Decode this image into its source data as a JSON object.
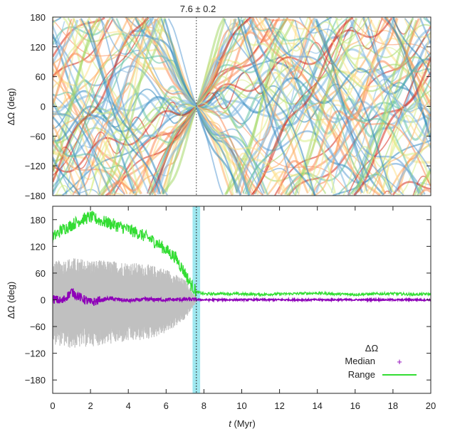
{
  "chart_data": [
    {
      "type": "line",
      "panel": "top",
      "title": "",
      "annotation": "7.6 ± 0.2",
      "xlabel": "",
      "ylabel": "ΔΩ (deg)",
      "xlim": [
        0,
        20
      ],
      "ylim": [
        -180,
        180
      ],
      "yticks": [
        "180",
        "120",
        "60",
        "0",
        "−60",
        "−120",
        "−180"
      ],
      "ytick_values": [
        180,
        120,
        60,
        0,
        -60,
        -120,
        -180
      ],
      "convergence_time": 7.6,
      "convergence_uncertainty": 0.2,
      "palette": [
        "#d7301f",
        "#fc8d59",
        "#fdae61",
        "#fee08b",
        "#d9ef8b",
        "#a6d96a",
        "#66c2a5",
        "#3288bd",
        "#5e9fd6",
        "#7fb8e0"
      ],
      "n_traces": 60
    },
    {
      "type": "line",
      "panel": "bottom",
      "title": "",
      "xlabel": "t (Myr)",
      "xlabel_italic_part": "t",
      "xlabel_rest": " (Myr)",
      "ylabel": "ΔΩ (deg)",
      "xlim": [
        0,
        20
      ],
      "ylim": [
        -210,
        210
      ],
      "xticks": [
        "0",
        "2",
        "4",
        "6",
        "8",
        "10",
        "12",
        "14",
        "16",
        "18",
        "20"
      ],
      "xtick_values": [
        0,
        2,
        4,
        6,
        8,
        10,
        12,
        14,
        16,
        18,
        20
      ],
      "yticks": [
        "180",
        "120",
        "60",
        "0",
        "−60",
        "−120",
        "−180"
      ],
      "ytick_values": [
        180,
        120,
        60,
        0,
        -60,
        -120,
        -180
      ],
      "band": {
        "x0": 7.4,
        "x1": 7.8,
        "color": "#9fe8f0"
      },
      "vline": 7.6,
      "legend_title": "ΔΩ",
      "legend_position": "bottom-right",
      "series": [
        {
          "name": "Range",
          "color": "#33dd33",
          "x": [
            0,
            0.5,
            1,
            1.5,
            2,
            2.5,
            3,
            3.5,
            4,
            4.5,
            5,
            5.5,
            6,
            6.5,
            7,
            7.3,
            7.6,
            8,
            9,
            10,
            11,
            12,
            13,
            14,
            15,
            16,
            17,
            18,
            19,
            20
          ],
          "y": [
            140,
            158,
            168,
            180,
            186,
            178,
            172,
            165,
            158,
            150,
            140,
            128,
            112,
            95,
            60,
            35,
            18,
            13,
            14,
            13,
            12,
            13,
            14,
            15,
            13,
            12,
            13,
            14,
            12,
            13
          ]
        },
        {
          "name": "Median",
          "color": "#8e00b8",
          "x": [
            0,
            0.5,
            1,
            1.5,
            2,
            3,
            4,
            5,
            6,
            7,
            8,
            10,
            12,
            14,
            16,
            18,
            20
          ],
          "y": [
            2,
            -3,
            18,
            4,
            -6,
            3,
            -2,
            1,
            0,
            1,
            0,
            0,
            0,
            0,
            0,
            0,
            0
          ]
        }
      ],
      "grey_spread": {
        "color": "#c0c0c0",
        "x": [
          0,
          1,
          2,
          3,
          4,
          5,
          6,
          7,
          7.6
        ],
        "upper": [
          85,
          95,
          90,
          88,
          85,
          80,
          70,
          45,
          5
        ],
        "lower": [
          -100,
          -110,
          -105,
          -100,
          -95,
          -90,
          -75,
          -45,
          -5
        ]
      }
    }
  ]
}
